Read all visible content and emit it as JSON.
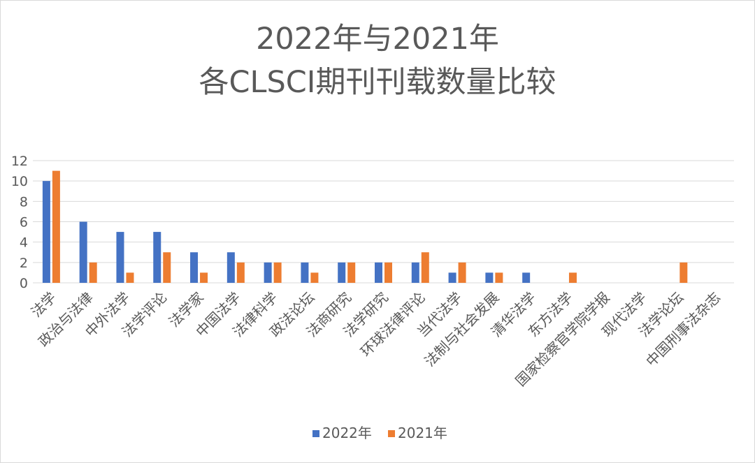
{
  "chart_data": {
    "type": "bar",
    "title_lines": [
      "2022年与2021年",
      "各CLSCI期刊刊载数量比较"
    ],
    "categories": [
      "法学",
      "政治与法律",
      "中外法学",
      "法学评论",
      "法学家",
      "中国法学",
      "法律科学",
      "政法论坛",
      "法商研究",
      "法学研究",
      "环球法律评论",
      "当代法学",
      "法制与社会发展",
      "清华法学",
      "东方法学",
      "国家检察官学院学报",
      "现代法学",
      "法学论坛",
      "中国刑事法杂志"
    ],
    "series": [
      {
        "name": "2022年",
        "color": "#4472c4",
        "values": [
          10,
          6,
          5,
          5,
          3,
          3,
          2,
          2,
          2,
          2,
          2,
          1,
          1,
          1,
          0,
          0,
          0,
          0,
          0
        ]
      },
      {
        "name": "2021年",
        "color": "#ed7d31",
        "values": [
          11,
          2,
          1,
          3,
          1,
          2,
          2,
          1,
          2,
          2,
          3,
          2,
          1,
          0,
          1,
          0,
          0,
          2,
          0
        ]
      }
    ],
    "xlabel": "",
    "ylabel": "",
    "ylim": [
      0,
      12
    ],
    "yticks": [
      "0",
      "2",
      "4",
      "6",
      "8",
      "10",
      "12"
    ],
    "grid": true,
    "legend_position": "bottom"
  }
}
